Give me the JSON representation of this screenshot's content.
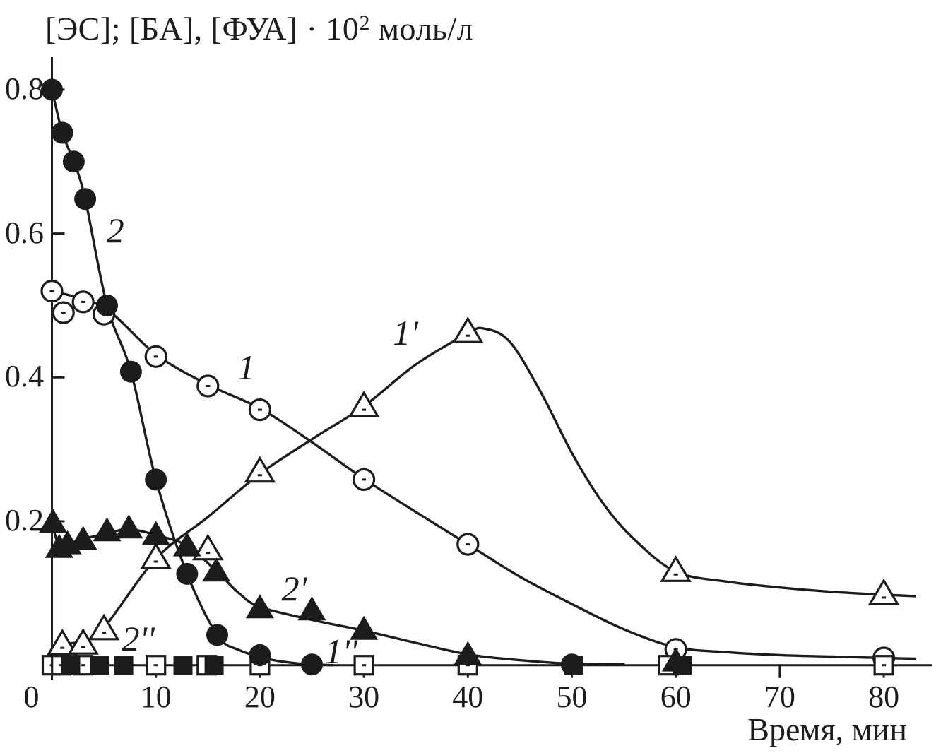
{
  "colors": {
    "background": "#ffffff",
    "ink": "#1c1c1c"
  },
  "title": {
    "prefix": "[ЭС]; [БА], [ФУА] · 10",
    "sup": "2",
    "suffix": " моль/л",
    "plain": "[ЭС]; [БА], [ФУА] · 10^2 моль/л"
  },
  "chart_data": {
    "type": "line",
    "title": "[ЭС]; [БА], [ФУА] · 10^2 моль/л",
    "xlabel": "Время, мин",
    "ylabel": "[ЭС]; [БА], [ФУА] · 10^2 моль/л",
    "xlim": [
      0,
      85
    ],
    "ylim": [
      0,
      0.85
    ],
    "grid": false,
    "legend_position": "none — curves labeled inline with italic numerals",
    "x_ticks": [
      {
        "value": 0,
        "label": "0",
        "dx": -29
      },
      {
        "value": 10,
        "label": "10"
      },
      {
        "value": 20,
        "label": "20"
      },
      {
        "value": 30,
        "label": "30"
      },
      {
        "value": 40,
        "label": "40"
      },
      {
        "value": 50,
        "label": "50"
      },
      {
        "value": 60,
        "label": "60"
      },
      {
        "value": 70,
        "label": "70"
      },
      {
        "value": 80,
        "label": "80"
      }
    ],
    "y_ticks": [
      {
        "value": 0.2,
        "label": "0.2"
      },
      {
        "value": 0.4,
        "label": "0.4"
      },
      {
        "value": 0.6,
        "label": "0.6"
      },
      {
        "value": 0.8,
        "label": "0.8"
      }
    ],
    "series": [
      {
        "id": "1",
        "label": "1",
        "marker": "open-circle-dot",
        "points": [
          [
            0,
            0.52
          ],
          [
            1.1,
            0.49
          ],
          [
            3,
            0.505
          ],
          [
            5,
            0.488
          ],
          [
            10,
            0.429
          ],
          [
            15,
            0.388
          ],
          [
            20,
            0.355
          ],
          [
            30,
            0.258
          ],
          [
            40,
            0.168
          ],
          [
            60,
            0.022
          ],
          [
            80,
            0.01
          ]
        ],
        "curve": [
          [
            0,
            0.52
          ],
          [
            5,
            0.497
          ],
          [
            10,
            0.432
          ],
          [
            15,
            0.39
          ],
          [
            20,
            0.357
          ],
          [
            25,
            0.31
          ],
          [
            30,
            0.259
          ],
          [
            35,
            0.213
          ],
          [
            40,
            0.168
          ],
          [
            45,
            0.123
          ],
          [
            50,
            0.085
          ],
          [
            55,
            0.05
          ],
          [
            60,
            0.025
          ],
          [
            65,
            0.018
          ],
          [
            70,
            0.014
          ],
          [
            75,
            0.012
          ],
          [
            80,
            0.01
          ],
          [
            83,
            0.009
          ]
        ]
      },
      {
        "id": "1p",
        "label": "1'",
        "marker": "open-triangle-dot",
        "points": [
          [
            1,
            0.028
          ],
          [
            3,
            0.029
          ],
          [
            5,
            0.049
          ],
          [
            10,
            0.148
          ],
          [
            15,
            0.16
          ],
          [
            20,
            0.268
          ],
          [
            30,
            0.359
          ],
          [
            40,
            0.462
          ],
          [
            60,
            0.13
          ],
          [
            80,
            0.098
          ]
        ],
        "curve": [
          [
            0.1,
            0.002
          ],
          [
            0.8,
            0.026
          ],
          [
            3,
            0.034
          ],
          [
            5,
            0.052
          ],
          [
            10,
            0.148
          ],
          [
            15,
            0.206
          ],
          [
            20,
            0.266
          ],
          [
            25,
            0.314
          ],
          [
            30,
            0.36
          ],
          [
            35,
            0.418
          ],
          [
            40,
            0.461
          ],
          [
            41.5,
            0.468
          ],
          [
            44,
            0.45
          ],
          [
            47,
            0.38
          ],
          [
            50,
            0.295
          ],
          [
            53,
            0.225
          ],
          [
            56,
            0.175
          ],
          [
            60,
            0.13
          ],
          [
            65,
            0.116
          ],
          [
            70,
            0.108
          ],
          [
            75,
            0.102
          ],
          [
            80,
            0.098
          ],
          [
            83,
            0.096
          ]
        ]
      },
      {
        "id": "2",
        "label": "2",
        "marker": "filled-circle",
        "points": [
          [
            0,
            0.8
          ],
          [
            1,
            0.74
          ],
          [
            2.1,
            0.7
          ],
          [
            3.2,
            0.648
          ],
          [
            5.3,
            0.5
          ],
          [
            7.6,
            0.408
          ],
          [
            10,
            0.258
          ],
          [
            13,
            0.127
          ],
          [
            15.9,
            0.042
          ],
          [
            20,
            0.014
          ],
          [
            25,
            0.001
          ],
          [
            50,
            0.001
          ]
        ],
        "curve": [
          [
            0,
            0.8
          ],
          [
            1,
            0.74
          ],
          [
            2.1,
            0.7
          ],
          [
            3.2,
            0.648
          ],
          [
            5.3,
            0.5
          ],
          [
            7.6,
            0.408
          ],
          [
            10,
            0.258
          ],
          [
            13,
            0.127
          ],
          [
            15.9,
            0.042
          ],
          [
            18,
            0.021
          ],
          [
            21,
            0.008
          ],
          [
            24,
            0.002
          ],
          [
            27,
            0
          ]
        ]
      },
      {
        "id": "2p",
        "label": "2'",
        "marker": "filled-triangle",
        "points": [
          [
            0.1,
            0.198
          ],
          [
            0.7,
            0.163
          ],
          [
            1.5,
            0.168
          ],
          [
            3,
            0.174
          ],
          [
            5.3,
            0.186
          ],
          [
            7.4,
            0.19
          ],
          [
            10,
            0.181
          ],
          [
            13,
            0.165
          ],
          [
            15.8,
            0.13
          ],
          [
            20,
            0.079
          ],
          [
            25,
            0.076
          ],
          [
            30,
            0.049
          ],
          [
            40,
            0.014
          ],
          [
            60,
            0.005
          ]
        ],
        "curve": [
          [
            0,
            0.198
          ],
          [
            0.5,
            0.172
          ],
          [
            1,
            0.166
          ],
          [
            2,
            0.171
          ],
          [
            4,
            0.179
          ],
          [
            6,
            0.186
          ],
          [
            7.5,
            0.189
          ],
          [
            10,
            0.181
          ],
          [
            13,
            0.166
          ],
          [
            15.8,
            0.131
          ],
          [
            18,
            0.1
          ],
          [
            20,
            0.081
          ],
          [
            25,
            0.063
          ],
          [
            30,
            0.048
          ],
          [
            35,
            0.031
          ],
          [
            40,
            0.015
          ],
          [
            45,
            0.007
          ],
          [
            50,
            0.002
          ],
          [
            55,
            0.001
          ]
        ]
      },
      {
        "id": "1pp",
        "label": "1''",
        "marker": "open-square-dot",
        "points": [
          [
            0,
            0
          ],
          [
            0.9,
            0
          ],
          [
            3,
            0
          ],
          [
            10,
            0
          ],
          [
            14.9,
            0
          ],
          [
            20,
            0
          ],
          [
            30,
            0
          ],
          [
            40,
            0
          ],
          [
            59.3,
            0
          ],
          [
            80,
            0
          ]
        ]
      },
      {
        "id": "2pp",
        "label": "2''",
        "marker": "filled-square",
        "points": [
          [
            1.8,
            0
          ],
          [
            4.6,
            0
          ],
          [
            6.9,
            0
          ],
          [
            12.6,
            0
          ],
          [
            15.6,
            0
          ],
          [
            50.2,
            0
          ],
          [
            60.6,
            0
          ]
        ]
      }
    ],
    "annotations": [
      {
        "text": "2",
        "t": 6.1,
        "v": 0.604
      },
      {
        "text": "1",
        "t": 18.7,
        "v": 0.413
      },
      {
        "text": "1'",
        "t": 34.0,
        "v": 0.461
      },
      {
        "text": "2'",
        "t": 23.3,
        "v": 0.106
      },
      {
        "text": "1''",
        "t": 27.8,
        "v": 0.018
      },
      {
        "text": "2''",
        "t": 8.3,
        "v": 0.036
      }
    ]
  }
}
